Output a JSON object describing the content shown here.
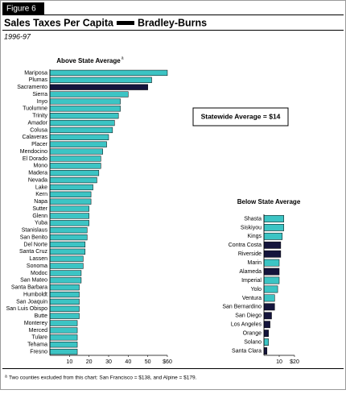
{
  "figure_label": "Figure 6",
  "title": "Sales Taxes Per Capita",
  "title_suffix": "Bradley-Burns",
  "subtitle": "1996-97",
  "callout": "Statewide Average = $14",
  "footnote_marker": "a",
  "footnote": "Two counties excluded from this chart:  San Francisco = $138, and Alpine = $179.",
  "chart_data": [
    {
      "type": "bar",
      "orientation": "horizontal",
      "title": "Above State Average",
      "title_marker": "a",
      "categories": [
        "Mariposa",
        "Plumas",
        "Sacramento",
        "Sierra",
        "Inyo",
        "Tuolumne",
        "Trinity",
        "Amador",
        "Colusa",
        "Calaveras",
        "Placer",
        "Mendocino",
        "El Dorado",
        "Mono",
        "Madera",
        "Nevada",
        "Lake",
        "Kern",
        "Napa",
        "Sutter",
        "Glenn",
        "Yuba",
        "Stanislaus",
        "San Benito",
        "Del Norte",
        "Santa Cruz",
        "Lassen",
        "Sonoma",
        "Modoc",
        "San Mateo",
        "Santa Barbara",
        "Humboldt",
        "San Joaquin",
        "San Luis Obispo",
        "Butte",
        "Monterey",
        "Merced",
        "Tulare",
        "Tehama",
        "Fresno"
      ],
      "values": [
        60,
        52,
        50,
        40,
        36,
        36,
        35,
        33,
        32,
        30,
        29,
        27,
        26,
        26,
        25,
        24,
        22,
        21,
        21,
        20,
        20,
        20,
        19,
        19,
        18,
        18,
        17,
        17,
        16,
        16,
        15,
        15,
        15,
        15,
        15,
        14,
        14,
        14,
        14,
        14
      ],
      "colors": [
        "#3cc4c4",
        "#3cc4c4",
        "#14143c",
        "#3cc4c4",
        "#3cc4c4",
        "#3cc4c4",
        "#3cc4c4",
        "#3cc4c4",
        "#3cc4c4",
        "#3cc4c4",
        "#3cc4c4",
        "#3cc4c4",
        "#3cc4c4",
        "#3cc4c4",
        "#3cc4c4",
        "#3cc4c4",
        "#3cc4c4",
        "#3cc4c4",
        "#3cc4c4",
        "#3cc4c4",
        "#3cc4c4",
        "#3cc4c4",
        "#3cc4c4",
        "#3cc4c4",
        "#3cc4c4",
        "#3cc4c4",
        "#3cc4c4",
        "#3cc4c4",
        "#3cc4c4",
        "#3cc4c4",
        "#3cc4c4",
        "#3cc4c4",
        "#3cc4c4",
        "#3cc4c4",
        "#3cc4c4",
        "#3cc4c4",
        "#3cc4c4",
        "#3cc4c4",
        "#3cc4c4",
        "#3cc4c4"
      ],
      "xlim": [
        0,
        60
      ],
      "xticks": [
        10,
        20,
        30,
        40,
        50,
        {
          "value": 60,
          "label": "$60"
        }
      ]
    },
    {
      "type": "bar",
      "orientation": "horizontal",
      "title": "Below State Average",
      "categories": [
        "Shasta",
        "Siskiyou",
        "Kings",
        "Contra Costa",
        "Riverside",
        "Marin",
        "Alameda",
        "Imperial",
        "Yolo",
        "Ventura",
        "San Bernardino",
        "San Diego",
        "Los Angeles",
        "Orange",
        "Solano",
        "Santa Clara"
      ],
      "values": [
        13,
        13,
        12,
        11,
        11,
        10,
        10,
        10,
        9,
        7,
        7,
        5,
        4,
        3,
        3,
        2
      ],
      "colors": [
        "#3cc4c4",
        "#3cc4c4",
        "#3cc4c4",
        "#14143c",
        "#14143c",
        "#3cc4c4",
        "#14143c",
        "#3cc4c4",
        "#3cc4c4",
        "#3cc4c4",
        "#14143c",
        "#14143c",
        "#14143c",
        "#14143c",
        "#3cc4c4",
        "#14143c"
      ],
      "xlim": [
        0,
        20
      ],
      "xticks": [
        10,
        {
          "value": 20,
          "label": "$20"
        }
      ]
    }
  ]
}
